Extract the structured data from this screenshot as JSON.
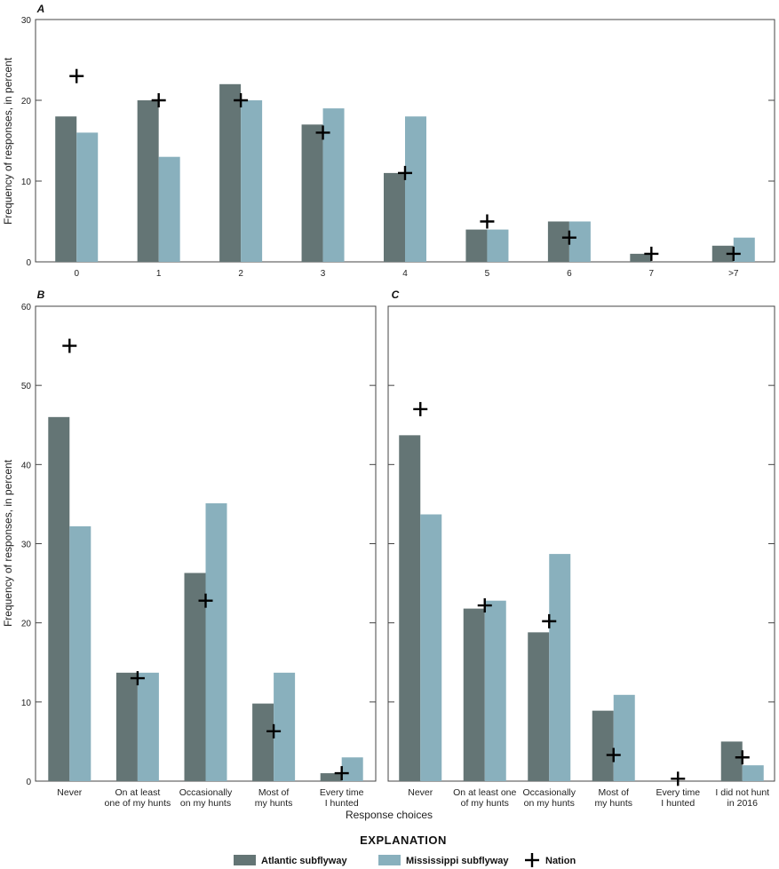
{
  "colors": {
    "atlantic": "#647575",
    "mississippi": "#89b0bd",
    "nation": "#000000",
    "frame": "#444444"
  },
  "axes": {
    "ylabel": "Frequency of responses, in percent",
    "xlabel": "Response choices"
  },
  "legend": {
    "title": "EXPLANATION",
    "atlantic": "Atlantic subflyway",
    "mississippi": "Mississippi subflyway",
    "nation": "Nation"
  },
  "chart_data": [
    {
      "panel": "A",
      "type": "bar",
      "ylabel": "Frequency of responses, in percent",
      "xlabel": "",
      "ylim": [
        0,
        30
      ],
      "yticks": [
        "0",
        "10",
        "20",
        "30"
      ],
      "categories": [
        [
          "0"
        ],
        [
          "1"
        ],
        [
          "2"
        ],
        [
          "3"
        ],
        [
          "4"
        ],
        [
          "5"
        ],
        [
          "6"
        ],
        [
          "7"
        ],
        [
          ">7"
        ]
      ],
      "series": [
        {
          "name": "Atlantic subflyway",
          "values": [
            18,
            20,
            22,
            17,
            11,
            4,
            5,
            1,
            2
          ]
        },
        {
          "name": "Mississippi subflyway",
          "values": [
            16,
            13,
            20,
            19,
            18,
            4,
            5,
            0,
            3
          ]
        },
        {
          "name": "Nation",
          "values": [
            23,
            20,
            20,
            16,
            11,
            5,
            3,
            1,
            1
          ]
        }
      ]
    },
    {
      "panel": "B",
      "type": "bar",
      "ylabel": "Frequency of responses, in percent",
      "xlabel": "Response choices",
      "ylim": [
        0,
        60
      ],
      "yticks": [
        "0",
        "10",
        "20",
        "30",
        "40",
        "50",
        "60"
      ],
      "categories": [
        [
          "Never"
        ],
        [
          "On at least",
          "one of my hunts"
        ],
        [
          "Occasionally",
          "on my hunts"
        ],
        [
          "Most of",
          "my hunts"
        ],
        [
          "Every time",
          "I hunted"
        ]
      ],
      "series": [
        {
          "name": "Atlantic subflyway",
          "values": [
            46,
            13.7,
            26.3,
            9.8,
            1
          ]
        },
        {
          "name": "Mississippi subflyway",
          "values": [
            32.2,
            13.7,
            35.1,
            13.7,
            3
          ]
        },
        {
          "name": "Nation",
          "values": [
            55,
            13,
            22.8,
            6.3,
            1
          ]
        }
      ]
    },
    {
      "panel": "C",
      "type": "bar",
      "ylabel": "",
      "xlabel": "Response choices",
      "ylim": [
        0,
        60
      ],
      "yticks": [],
      "categories": [
        [
          "Never"
        ],
        [
          "On at least one",
          "of my hunts"
        ],
        [
          "Occasionally",
          "on my hunts"
        ],
        [
          "Most of",
          "my hunts"
        ],
        [
          "Every time",
          "I hunted"
        ],
        [
          "I did not hunt",
          "in 2016"
        ]
      ],
      "series": [
        {
          "name": "Atlantic subflyway",
          "values": [
            43.7,
            21.8,
            18.8,
            8.9,
            0,
            5
          ]
        },
        {
          "name": "Mississippi subflyway",
          "values": [
            33.7,
            22.8,
            28.7,
            10.9,
            0,
            2
          ]
        },
        {
          "name": "Nation",
          "values": [
            47,
            22.2,
            20.2,
            3.3,
            0.3,
            3
          ]
        }
      ]
    }
  ]
}
